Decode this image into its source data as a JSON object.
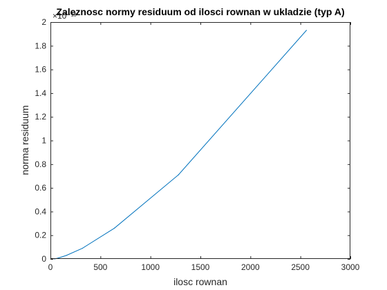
{
  "chart_data": {
    "type": "line",
    "title": "Zaleznosc normy residuum od ilosci rownan w ukladzie (typ A)",
    "xlabel": "ilosc rownan",
    "ylabel": "norma residuum",
    "exponent_label": "×10⁻¹³",
    "xlim": [
      0,
      3000
    ],
    "ylim": [
      0,
      2
    ],
    "x_ticks": [
      0,
      500,
      1000,
      1500,
      2000,
      2500,
      3000
    ],
    "x_tick_labels": [
      "0",
      "500",
      "1000",
      "1500",
      "2000",
      "2500",
      "3000"
    ],
    "y_ticks": [
      0,
      0.2,
      0.4,
      0.6,
      0.8,
      1,
      1.2,
      1.4,
      1.6,
      1.8,
      2
    ],
    "y_tick_labels": [
      "0",
      "0.2",
      "0.4",
      "0.6",
      "0.8",
      "1",
      "1.2",
      "1.4",
      "1.6",
      "1.8",
      "2"
    ],
    "grid": false,
    "series": [
      {
        "color": "#0072BD",
        "x": [
          40,
          80,
          160,
          320,
          640,
          1280,
          2560
        ],
        "values": [
          0.0,
          0.008,
          0.03,
          0.09,
          0.26,
          0.71,
          1.93
        ]
      }
    ]
  }
}
